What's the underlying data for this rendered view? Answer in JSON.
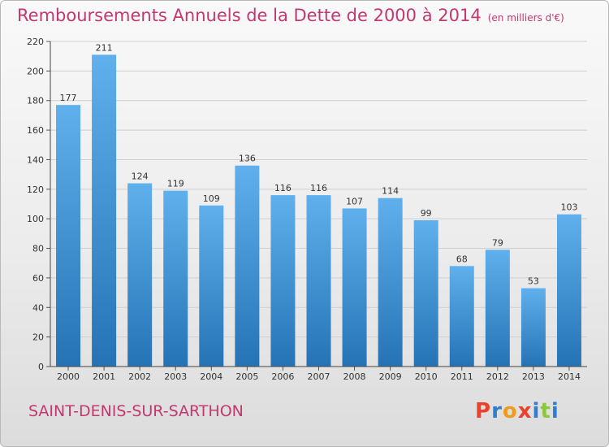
{
  "header": {
    "title": "Remboursements Annuels de la Dette de 2000 à 2014",
    "subtitle": "(en milliers d'€)"
  },
  "footer": {
    "commune": "SAINT-DENIS-SUR-SARTHON",
    "logo": "Proxiti"
  },
  "colors": {
    "title": "#c2386f",
    "bar_light": "#5fb0ec",
    "bar_dark": "#2573b5",
    "logo_letters": [
      "#e9412c",
      "#2f7fd0",
      "#f29a1d",
      "#e9412c",
      "#2f7fd0",
      "#8dc63f",
      "#2f7fd0"
    ]
  },
  "chart_data": {
    "type": "bar",
    "title": "Remboursements Annuels de la Dette de 2000 à 2014",
    "subtitle": "(en milliers d'€)",
    "categories": [
      "2000",
      "2001",
      "2002",
      "2003",
      "2004",
      "2005",
      "2006",
      "2007",
      "2008",
      "2009",
      "2010",
      "2011",
      "2012",
      "2013",
      "2014"
    ],
    "values": [
      177,
      211,
      124,
      119,
      109,
      136,
      116,
      116,
      107,
      114,
      99,
      68,
      79,
      53,
      103
    ],
    "value_labels": [
      "177",
      "211",
      "124",
      "119",
      "109",
      "136",
      "116",
      "116",
      "107",
      "114",
      "99",
      "68",
      "79",
      "53",
      "103"
    ],
    "ylim": [
      0,
      220
    ],
    "yticks": [
      0,
      20,
      40,
      60,
      80,
      100,
      120,
      140,
      160,
      180,
      200,
      220
    ],
    "ytick_labels": [
      "0",
      "20",
      "40",
      "60",
      "80",
      "100",
      "120",
      "140",
      "160",
      "180",
      "200",
      "220"
    ],
    "xlabel": "",
    "ylabel": "",
    "grid": true
  }
}
